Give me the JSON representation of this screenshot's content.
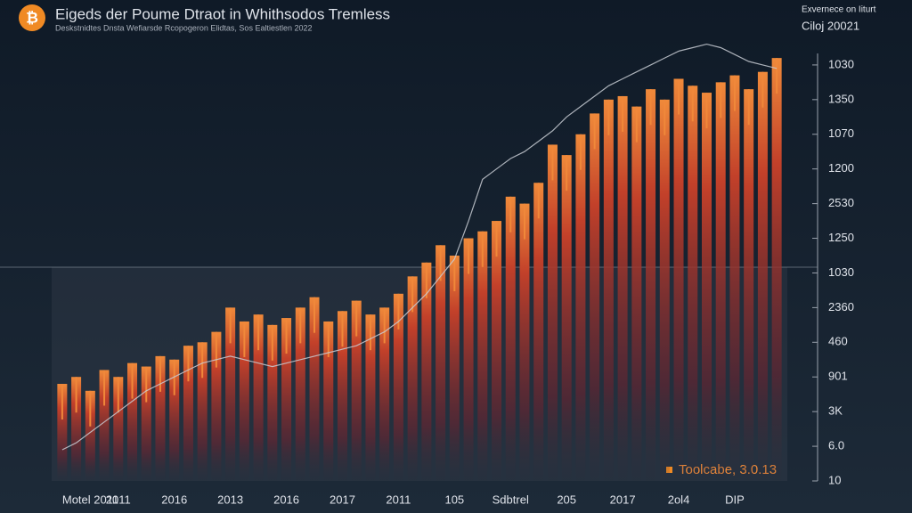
{
  "chart_data": {
    "type": "bar",
    "title": "Eigeds der Poume Dtraot in Whithsodos Tremless",
    "subtitle": "Deskstnidtes Dnsta Wefiarsde Rcopogeron Elidtas, Sos Ealtiestlen 2022",
    "corner_title": "Exvernece on Iiturt",
    "corner_subtitle": "Ciloj 20021",
    "annotation": "Toolcabe, 3.0.13",
    "categories": [
      "Motel 2011",
      null,
      null,
      null,
      "2011",
      null,
      null,
      null,
      "2016",
      null,
      null,
      null,
      "2013",
      null,
      null,
      null,
      "2016",
      null,
      null,
      null,
      "2017",
      null,
      null,
      null,
      "2011",
      null,
      null,
      null,
      "105",
      null,
      null,
      null,
      "Sdbtrel",
      null,
      null,
      null,
      "205",
      null,
      null,
      null,
      "2017",
      null,
      null,
      null,
      "2ol4",
      null,
      null,
      null,
      "DIP",
      null,
      null,
      null
    ],
    "series": [
      {
        "type": "bar",
        "color": "#f0883a",
        "values": [
          2.8,
          3.0,
          2.6,
          3.2,
          3.0,
          3.4,
          3.3,
          3.6,
          3.5,
          3.9,
          4.0,
          4.3,
          5.0,
          4.6,
          4.8,
          4.5,
          4.7,
          5.0,
          5.3,
          4.6,
          4.9,
          5.2,
          4.8,
          5.0,
          5.4,
          5.9,
          6.3,
          6.8,
          6.5,
          7.0,
          7.2,
          7.5,
          8.2,
          8.0,
          8.6,
          9.7,
          9.4,
          10.0,
          10.6,
          11.0,
          11.1,
          10.8,
          11.3,
          11.0,
          11.6,
          11.4,
          11.2,
          11.5,
          11.7,
          11.3,
          11.8,
          12.2
        ]
      },
      {
        "type": "line",
        "color": "#c8ccd4",
        "values": [
          0.9,
          1.1,
          1.4,
          1.7,
          2.0,
          2.3,
          2.6,
          2.8,
          3.0,
          3.2,
          3.4,
          3.5,
          3.6,
          3.5,
          3.4,
          3.3,
          3.4,
          3.5,
          3.6,
          3.7,
          3.8,
          3.9,
          4.1,
          4.3,
          4.6,
          5.0,
          5.4,
          5.9,
          6.4,
          7.5,
          8.7,
          9.0,
          9.3,
          9.5,
          9.8,
          10.1,
          10.5,
          10.8,
          11.1,
          11.4,
          11.6,
          11.8,
          12.0,
          12.2,
          12.4,
          12.5,
          12.6,
          12.5,
          12.3,
          12.1,
          12.0,
          11.9
        ]
      }
    ],
    "ylim": [
      0,
      13
    ],
    "yticks": [
      {
        "value": 12,
        "label": "1030"
      },
      {
        "value": 11,
        "label": "1350"
      },
      {
        "value": 10,
        "label": "1070"
      },
      {
        "value": 9,
        "label": "1200"
      },
      {
        "value": 8,
        "label": "2530"
      },
      {
        "value": 7,
        "label": "1250"
      },
      {
        "value": 6,
        "label": "1030"
      },
      {
        "value": 5,
        "label": "2360"
      },
      {
        "value": 4,
        "label": "460"
      },
      {
        "value": 3,
        "label": "901"
      },
      {
        "value": 2,
        "label": "3K"
      },
      {
        "value": 1,
        "label": "6.0"
      },
      {
        "value": 0,
        "label": "10"
      }
    ]
  }
}
